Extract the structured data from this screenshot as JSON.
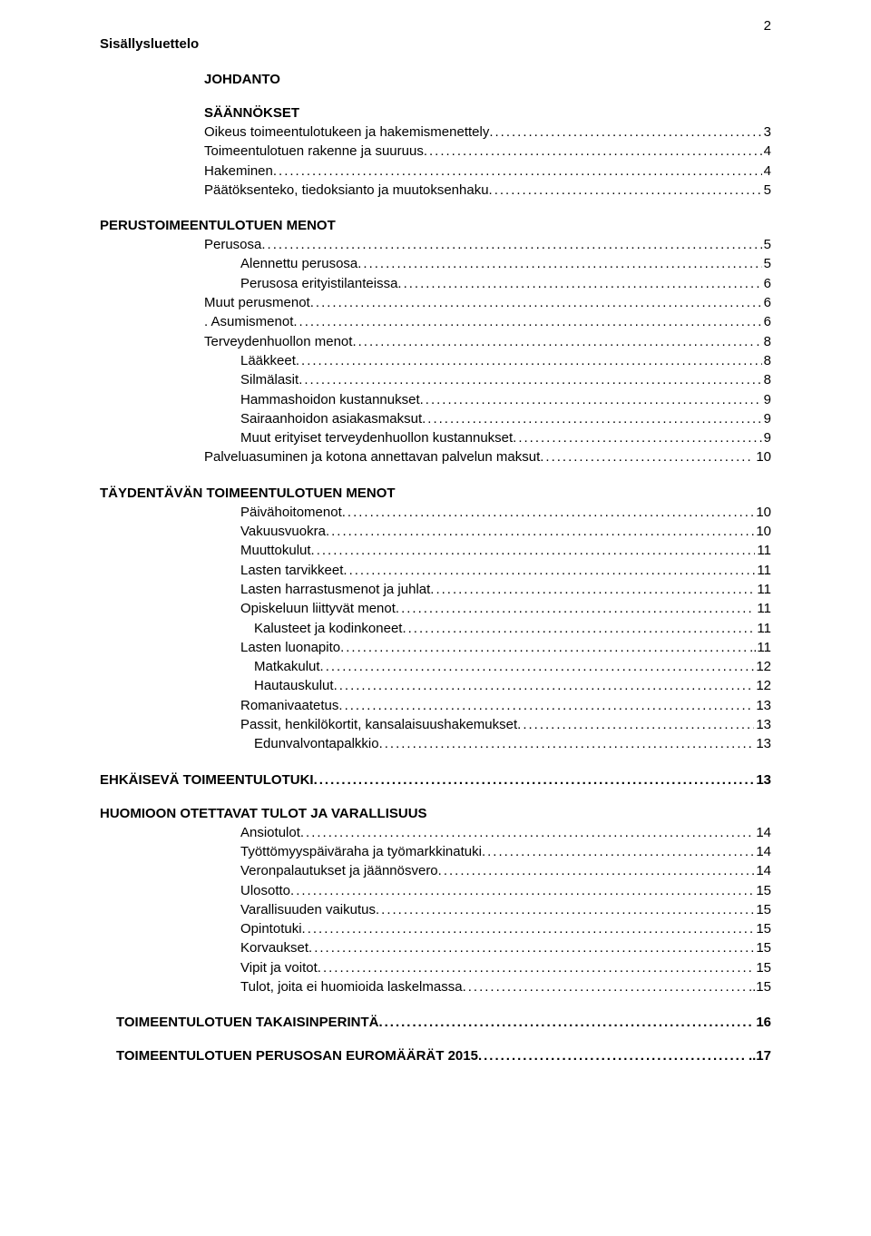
{
  "page_number": "2",
  "title": "Sisällysluettelo",
  "sections": [
    {
      "heading": "JOHDANTO",
      "heading_indent": "indent1",
      "entries": []
    },
    {
      "heading": "SÄÄNNÖKSET",
      "heading_indent": "indent1",
      "entries": [
        {
          "label": "Oikeus toimeentulotukeen ja hakemismenettely",
          "page": " 3",
          "indent": "indent1"
        },
        {
          "label": "Toimeentulotuen rakenne ja suuruus",
          "page": " 4",
          "indent": "indent1"
        },
        {
          "label": "Hakeminen",
          "page": " 4",
          "indent": "indent1"
        },
        {
          "label": "Päätöksenteko, tiedoksianto ja muutoksenhaku",
          "page": " 5",
          "indent": "indent1"
        }
      ]
    },
    {
      "heading": "PERUSTOIMEENTULOTUEN MENOT",
      "heading_indent": "indent0",
      "entries": [
        {
          "label": "Perusosa",
          "page": " 5",
          "indent": "indent1"
        },
        {
          "label": "Alennettu perusosa",
          "page": " 5",
          "indent": "indent2"
        },
        {
          "label": "Perusosa erityistilanteissa",
          "page": ". 6",
          "indent": "indent2"
        },
        {
          "label": "Muut perusmenot",
          "page": "6",
          "indent": "indent1"
        },
        {
          "label": ".   Asumismenot",
          "page": " 6",
          "indent": "indent1"
        },
        {
          "label": "Terveydenhuollon menot",
          "page": ". 8",
          "indent": "indent1"
        },
        {
          "label": "Lääkkeet",
          "page": " 8",
          "indent": "indent2"
        },
        {
          "label": "Silmälasit",
          "page": " 8",
          "indent": "indent2"
        },
        {
          "label": "Hammashoidon kustannukset",
          "page": "  9",
          "indent": "indent2"
        },
        {
          "label": "Sairaanhoidon asiakasmaksut",
          "page": "  9",
          "indent": "indent2"
        },
        {
          "label": "Muut erityiset terveydenhuollon kustannukset",
          "page": "  9",
          "indent": "indent2"
        },
        {
          "label": "Palveluasuminen ja kotona annettavan palvelun maksut",
          "page": "  10",
          "indent": "indent1"
        }
      ]
    },
    {
      "heading": "TÄYDENTÄVÄN TOIMEENTULOTUEN MENOT",
      "heading_indent": "indent0",
      "entries": [
        {
          "label": "Päivähoitomenot",
          "page": " 10",
          "indent": "indent2"
        },
        {
          "label": "Vakuusvuokra",
          "page": " 10",
          "indent": "indent2"
        },
        {
          "label": "Muuttokulut",
          "page": "11",
          "indent": "indent2"
        },
        {
          "label": "Lasten tarvikkeet",
          "page": "11",
          "indent": "indent2"
        },
        {
          "label": "Lasten harrastusmenot ja juhlat",
          "page": " 11",
          "indent": "indent2"
        },
        {
          "label": "Opiskeluun liittyvät menot",
          "page": " 11",
          "indent": "indent2"
        },
        {
          "label": "Kalusteet ja kodinkoneet",
          "page": "11",
          "indent": "indent3"
        },
        {
          "label": "Lasten luonapito",
          "page": "..11",
          "indent": "indent2"
        },
        {
          "label": "Matkakulut",
          "page": "12",
          "indent": "indent3"
        },
        {
          "label": "Hautauskulut",
          "page": "12",
          "indent": "indent3"
        },
        {
          "label": "Romanivaatetus",
          "page": "13",
          "indent": "indent2"
        },
        {
          "label": "Passit, henkilökortit, kansalaisuushakemukset",
          "page": "13",
          "indent": "indent2"
        },
        {
          "label": "Edunvalvontapalkkio",
          "page": "13",
          "indent": "indent3"
        }
      ]
    }
  ],
  "standalone1": {
    "label": "EHKÄISEVÄ TOIMEENTULOTUKI",
    "page": "13",
    "indent": "indent0"
  },
  "section_huomioon": {
    "heading": "HUOMIOON OTETTAVAT TULOT JA VARALLISUUS",
    "heading_indent": "indent0",
    "entries": [
      {
        "label": "Ansiotulot",
        "page": " 14",
        "indent": "indent2"
      },
      {
        "label": "Työttömyyspäiväraha ja työmarkkinatuki",
        "page": " 14",
        "indent": "indent2"
      },
      {
        "label": "Veronpalautukset ja jäännösvero",
        "page": "14",
        "indent": "indent2"
      },
      {
        "label": "Ulosotto",
        "page": "15",
        "indent": "indent2"
      },
      {
        "label": "Varallisuuden vaikutus",
        "page": "15",
        "indent": "indent2"
      },
      {
        "label": "Opintotuki",
        "page": "15",
        "indent": "indent2"
      },
      {
        "label": "Korvaukset ",
        "page": "15",
        "indent": "indent2"
      },
      {
        "label": "Vipit ja voitot",
        "page": "15",
        "indent": "indent2"
      },
      {
        "label": "Tulot, joita ei huomioida laskelmassa",
        "page": "..15",
        "indent": "indent2"
      }
    ]
  },
  "standalone2": {
    "label": "TOIMEENTULOTUEN TAKAISINPERINTÄ",
    "page": "16",
    "indent": "indent0"
  },
  "standalone3": {
    "label": "TOIMEENTULOTUEN PERUSOSAN  EUROMÄÄRÄT 2015",
    "page": "..17",
    "indent": "indent0"
  }
}
